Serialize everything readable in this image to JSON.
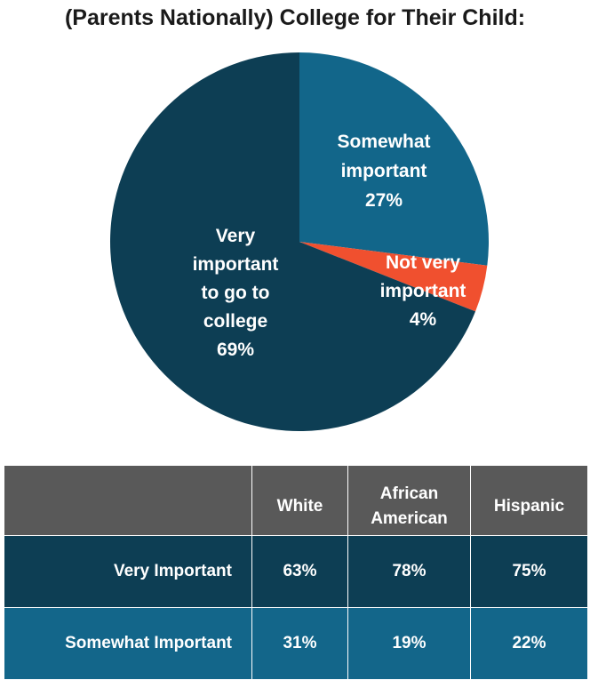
{
  "chart_data": {
    "type": "pie",
    "title": "(Parents Nationally) College for Their Child:",
    "slices": [
      {
        "label_lines": [
          "Somewhat",
          "important",
          "27%"
        ],
        "value": 27,
        "color": "#12668a"
      },
      {
        "label_lines": [
          "Not very",
          "important",
          "4%"
        ],
        "value": 4,
        "color": "#f0502f"
      },
      {
        "label_lines": [
          "Very",
          "important",
          "to go to",
          "college",
          "69%"
        ],
        "value": 69,
        "color": "#0d3e54"
      }
    ]
  },
  "table": {
    "columns": [
      "",
      "White",
      "African American",
      "Hispanic"
    ],
    "rows": [
      {
        "label": "Very Important",
        "values": [
          "63%",
          "78%",
          "75%"
        ]
      },
      {
        "label": "Somewhat Important",
        "values": [
          "31%",
          "19%",
          "22%"
        ]
      }
    ]
  }
}
